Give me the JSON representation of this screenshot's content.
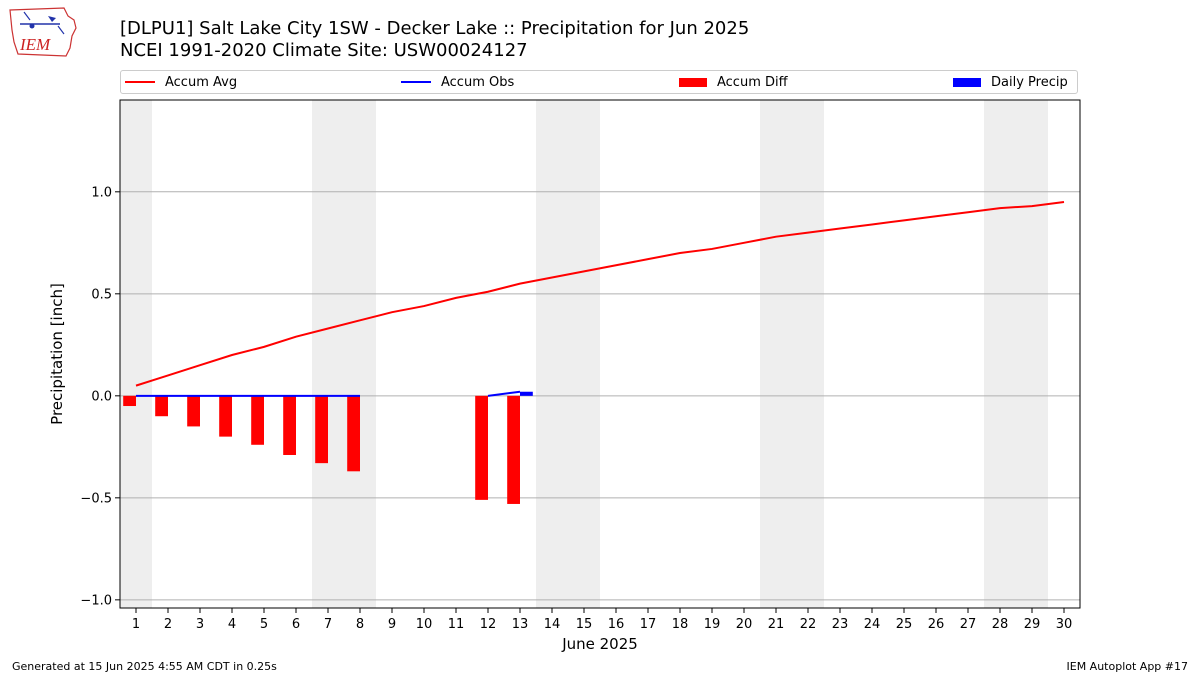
{
  "header": {
    "title_line1": "[DLPU1] Salt Lake City 1SW - Decker Lake :: Precipitation for Jun 2025",
    "title_line2": "NCEI 1991-2020 Climate Site: USW00024127",
    "logo_text": "IEM"
  },
  "legend": {
    "accum_avg": "Accum Avg",
    "accum_obs": "Accum Obs",
    "accum_diff": "Accum Diff",
    "daily_precip": "Daily Precip"
  },
  "footer": {
    "generated": "Generated at 15 Jun 2025 4:55 AM CDT in 0.25s",
    "app": "IEM Autoplot App #17"
  },
  "colors": {
    "avg": "#ff0000",
    "obs": "#0000ff",
    "diff": "#ff0000",
    "daily": "#0000ff",
    "weekend": "#eeeeee",
    "grid": "#b0b0b0"
  },
  "chart_data": {
    "type": "line",
    "title": "[DLPU1] Salt Lake City 1SW - Decker Lake :: Precipitation for Jun 2025",
    "xlabel": "June 2025",
    "ylabel": "Precipitation [inch]",
    "xlim": [
      0.5,
      30.5
    ],
    "ylim": [
      -1.04,
      1.45
    ],
    "yticks": [
      -1.0,
      -0.5,
      0.0,
      0.5,
      1.0
    ],
    "ytick_labels": [
      "−1.0",
      "−0.5",
      "0.0",
      "0.5",
      "1.0"
    ],
    "x": [
      1,
      2,
      3,
      4,
      5,
      6,
      7,
      8,
      9,
      10,
      11,
      12,
      13,
      14,
      15,
      16,
      17,
      18,
      19,
      20,
      21,
      22,
      23,
      24,
      25,
      26,
      27,
      28,
      29,
      30
    ],
    "weekends": [
      [
        0.5,
        1.5
      ],
      [
        6.5,
        8.5
      ],
      [
        13.5,
        15.5
      ],
      [
        20.5,
        22.5
      ],
      [
        27.5,
        29.5
      ]
    ],
    "series": [
      {
        "name": "Accum Avg",
        "kind": "line",
        "x": [
          1,
          2,
          3,
          4,
          5,
          6,
          7,
          8,
          9,
          10,
          11,
          12,
          13,
          14,
          15,
          16,
          17,
          18,
          19,
          20,
          21,
          22,
          23,
          24,
          25,
          26,
          27,
          28,
          29,
          30
        ],
        "values": [
          0.05,
          0.1,
          0.15,
          0.2,
          0.24,
          0.29,
          0.33,
          0.37,
          0.41,
          0.44,
          0.48,
          0.51,
          0.55,
          0.58,
          0.61,
          0.64,
          0.67,
          0.7,
          0.72,
          0.75,
          0.78,
          0.8,
          0.82,
          0.84,
          0.86,
          0.88,
          0.9,
          0.92,
          0.93,
          0.95
        ]
      },
      {
        "name": "Accum Obs",
        "kind": "line",
        "x": [
          1,
          2,
          3,
          4,
          5,
          6,
          7,
          8,
          12,
          13
        ],
        "values": [
          0,
          0,
          0,
          0,
          0,
          0,
          0,
          0,
          0,
          0.02
        ],
        "segments": [
          [
            0,
            7
          ],
          [
            8,
            9
          ]
        ]
      },
      {
        "name": "Accum Diff",
        "kind": "bar",
        "x": [
          1,
          2,
          3,
          4,
          5,
          6,
          7,
          8,
          12,
          13
        ],
        "values": [
          -0.05,
          -0.1,
          -0.15,
          -0.2,
          -0.24,
          -0.29,
          -0.33,
          -0.37,
          -0.51,
          -0.53
        ]
      },
      {
        "name": "Daily Precip",
        "kind": "bar",
        "x": [
          1,
          2,
          3,
          4,
          5,
          6,
          7,
          8,
          12,
          13
        ],
        "values": [
          0,
          0,
          0,
          0,
          0,
          0,
          0,
          0,
          0,
          0.02
        ]
      }
    ]
  }
}
